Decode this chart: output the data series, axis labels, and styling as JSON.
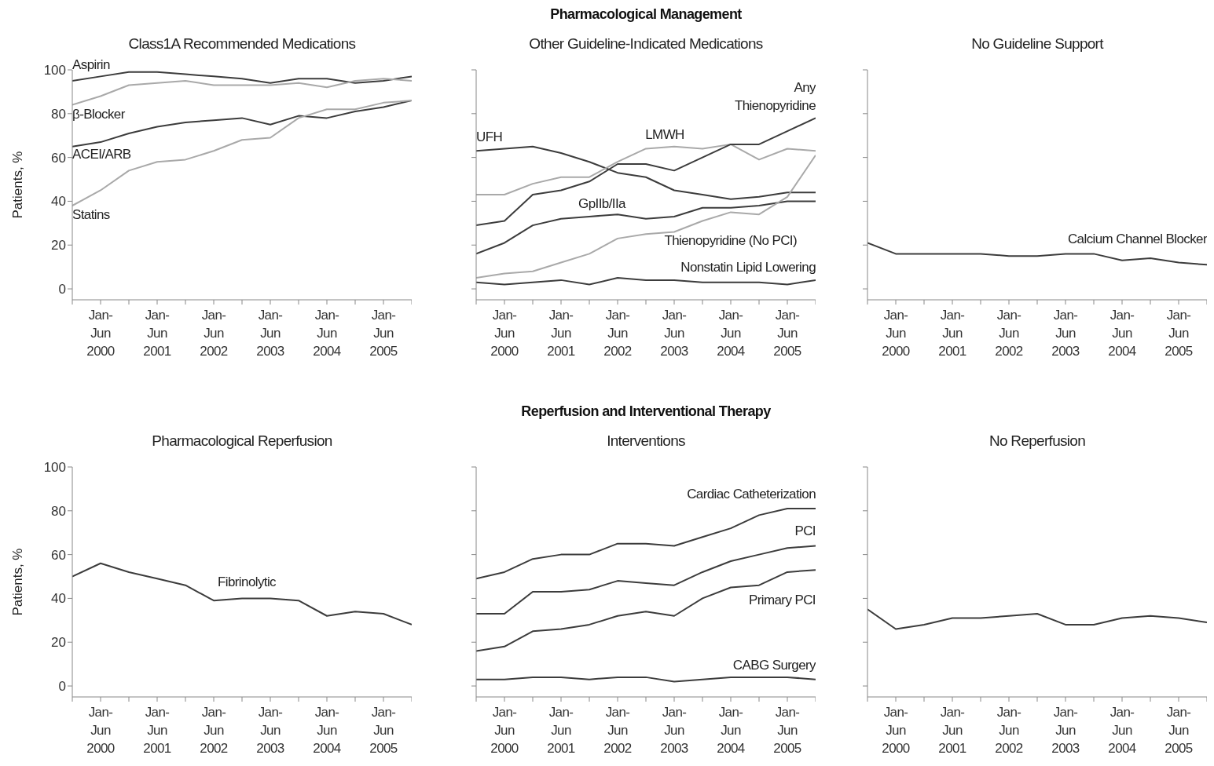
{
  "chart_data": [
    {
      "type": "line",
      "title": "Class1A Recommended Medications",
      "ylabel": "Patients, %",
      "marker": "none",
      "ylim": [
        -5,
        100
      ],
      "yticks": [
        0,
        20,
        40,
        60,
        80,
        100
      ],
      "categories": [
        null,
        "Jan-Jun 2000",
        null,
        "Jan-Jun 2001",
        null,
        "Jan-Jun 2002",
        null,
        "Jan-Jun 2003",
        null,
        "Jan-Jun 2004",
        null,
        "Jan-Jun 2005",
        null
      ],
      "series": [
        {
          "name": "Aspirin",
          "color": "#3c3c3c",
          "values": [
            95,
            97,
            99,
            99,
            98,
            97,
            96,
            94,
            96,
            96,
            94,
            95,
            97
          ]
        },
        {
          "name": "β-Blocker",
          "color": "#a9a9a9",
          "values": [
            84,
            88,
            93,
            94,
            95,
            93,
            93,
            93,
            94,
            92,
            95,
            96,
            95
          ]
        },
        {
          "name": "ACEI/ARB",
          "color": "#3c3c3c",
          "values": [
            65,
            67,
            71,
            74,
            76,
            77,
            78,
            75,
            79,
            78,
            81,
            83,
            86
          ]
        },
        {
          "name": "Statins",
          "color": "#a9a9a9",
          "values": [
            38,
            45,
            54,
            58,
            59,
            63,
            68,
            69,
            78,
            82,
            82,
            85,
            86
          ]
        }
      ]
    },
    {
      "type": "line",
      "title": "Pharmacological Management",
      "subtitle": "Other Guideline-Indicated Medications",
      "marker": "none",
      "tick_labels": "x",
      "ylim": [
        -5,
        100
      ],
      "yticks": [
        0,
        20,
        40,
        60,
        80,
        100
      ],
      "categories": [
        null,
        "Jan-Jun 2000",
        null,
        "Jan-Jun 2001",
        null,
        "Jan-Jun 2002",
        null,
        "Jan-Jun 2003",
        null,
        "Jan-Jun 2004",
        null,
        "Jan-Jun 2005",
        null
      ],
      "series": [
        {
          "name": "UFH",
          "color": "#3c3c3c",
          "values": [
            63,
            64,
            65,
            62,
            58,
            53,
            51,
            45,
            43,
            41,
            42,
            44,
            44
          ]
        },
        {
          "name": "LMWH",
          "color": "#a9a9a9",
          "values": [
            43,
            43,
            48,
            51,
            51,
            58,
            64,
            65,
            64,
            66,
            59,
            64,
            63
          ]
        },
        {
          "name": "Any Thienopyridine",
          "color": "#3c3c3c",
          "values": [
            29,
            31,
            43,
            45,
            49,
            57,
            57,
            54,
            60,
            66,
            66,
            72,
            78
          ]
        },
        {
          "name": "GpIIb/IIa",
          "color": "#3c3c3c",
          "values": [
            16,
            21,
            29,
            32,
            33,
            34,
            32,
            33,
            37,
            37,
            38,
            40,
            40
          ]
        },
        {
          "name": "Thienopyridine (No PCI)",
          "color": "#a9a9a9",
          "values": [
            5,
            7,
            8,
            12,
            16,
            23,
            25,
            26,
            31,
            35,
            34,
            42,
            61
          ]
        },
        {
          "name": "Nonstatin Lipid Lowering",
          "color": "#3c3c3c",
          "values": [
            3,
            2,
            3,
            4,
            2,
            5,
            4,
            4,
            3,
            3,
            3,
            2,
            4
          ]
        }
      ]
    },
    {
      "type": "line",
      "title": "No Guideline Support",
      "marker": "none",
      "tick_labels": "x",
      "ylim": [
        -5,
        100
      ],
      "yticks": [
        0,
        20,
        40,
        60,
        80,
        100
      ],
      "categories": [
        null,
        "Jan-Jun 2000",
        null,
        "Jan-Jun 2001",
        null,
        "Jan-Jun 2002",
        null,
        "Jan-Jun 2003",
        null,
        "Jan-Jun 2004",
        null,
        "Jan-Jun 2005",
        null
      ],
      "series": [
        {
          "name": "Calcium Channel Blocker",
          "color": "#3c3c3c",
          "values": [
            21,
            16,
            16,
            16,
            16,
            15,
            15,
            16,
            16,
            13,
            14,
            12,
            11
          ]
        }
      ]
    },
    {
      "type": "line",
      "title": "Pharmacological Reperfusion",
      "ylabel": "Patients, %",
      "marker": "none",
      "ylim": [
        -5,
        100
      ],
      "yticks": [
        0,
        20,
        40,
        60,
        80,
        100
      ],
      "categories": [
        null,
        "Jan-Jun 2000",
        null,
        "Jan-Jun 2001",
        null,
        "Jan-Jun 2002",
        null,
        "Jan-Jun 2003",
        null,
        "Jan-Jun 2004",
        null,
        "Jan-Jun 2005",
        null
      ],
      "series": [
        {
          "name": "Fibrinolytic",
          "color": "#3c3c3c",
          "values": [
            50,
            56,
            52,
            49,
            46,
            39,
            40,
            40,
            39,
            32,
            34,
            33,
            28
          ]
        }
      ]
    },
    {
      "type": "line",
      "title": "Reperfusion and Interventional Therapy",
      "subtitle": "Interventions",
      "marker": "none",
      "tick_labels": "x",
      "ylim": [
        -5,
        100
      ],
      "yticks": [
        0,
        20,
        40,
        60,
        80,
        100
      ],
      "categories": [
        null,
        "Jan-Jun 2000",
        null,
        "Jan-Jun 2001",
        null,
        "Jan-Jun 2002",
        null,
        "Jan-Jun 2003",
        null,
        "Jan-Jun 2004",
        null,
        "Jan-Jun 2005",
        null
      ],
      "series": [
        {
          "name": "Cardiac Catheterization",
          "color": "#3c3c3c",
          "values": [
            49,
            52,
            58,
            60,
            60,
            65,
            65,
            64,
            68,
            72,
            78,
            81,
            81
          ]
        },
        {
          "name": "PCI",
          "color": "#3c3c3c",
          "values": [
            33,
            33,
            43,
            43,
            44,
            48,
            47,
            46,
            52,
            57,
            60,
            63,
            64
          ]
        },
        {
          "name": "Primary PCI",
          "color": "#3c3c3c",
          "values": [
            16,
            18,
            25,
            26,
            28,
            32,
            34,
            32,
            40,
            45,
            46,
            52,
            53
          ]
        },
        {
          "name": "CABG Surgery",
          "color": "#3c3c3c",
          "values": [
            3,
            3,
            4,
            4,
            3,
            4,
            4,
            2,
            3,
            4,
            4,
            4,
            3
          ]
        }
      ]
    },
    {
      "type": "line",
      "title": "No Reperfusion",
      "marker": "none",
      "tick_labels": "x",
      "ylim": [
        -5,
        100
      ],
      "yticks": [
        0,
        20,
        40,
        60,
        80,
        100
      ],
      "categories": [
        null,
        "Jan-Jun 2000",
        null,
        "Jan-Jun 2001",
        null,
        "Jan-Jun 2002",
        null,
        "Jan-Jun 2003",
        null,
        "Jan-Jun 2004",
        null,
        "Jan-Jun 2005",
        null
      ],
      "series": [
        {
          "color": "#3c3c3c",
          "values": [
            35,
            26,
            28,
            31,
            31,
            32,
            33,
            28,
            28,
            31,
            32,
            31,
            29
          ]
        }
      ]
    }
  ]
}
